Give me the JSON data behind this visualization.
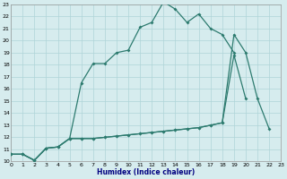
{
  "xlabel": "Humidex (Indice chaleur)",
  "background_color": "#d6ecee",
  "grid_color": "#afd4d8",
  "line_color": "#2d7b6f",
  "xlim": [
    0,
    23
  ],
  "ylim": [
    10,
    23
  ],
  "xticks": [
    0,
    1,
    2,
    3,
    4,
    5,
    6,
    7,
    8,
    9,
    10,
    11,
    12,
    13,
    14,
    15,
    16,
    17,
    18,
    19,
    20,
    21,
    22,
    23
  ],
  "yticks": [
    10,
    11,
    12,
    13,
    14,
    15,
    16,
    17,
    18,
    19,
    20,
    21,
    22,
    23
  ],
  "line1_x": [
    0,
    1,
    2,
    3,
    4,
    5,
    6,
    7,
    8,
    9,
    10,
    11,
    12,
    13,
    14,
    15,
    16,
    17,
    18,
    19
  ],
  "line1_y": [
    10.6,
    10.6,
    10.1,
    11.1,
    11.2,
    11.9,
    16.5,
    18.1,
    18.1,
    19.0,
    19.2,
    21.1,
    21.5,
    23.2,
    22.6,
    21.5,
    22.2,
    21.0,
    20.5,
    19.0
  ],
  "line2_x": [
    0,
    1,
    2,
    3,
    4,
    5,
    6,
    7,
    8,
    9,
    10,
    11,
    12,
    13,
    14,
    15,
    16,
    17,
    18,
    19,
    20
  ],
  "line2_y": [
    10.6,
    10.6,
    10.1,
    11.1,
    11.2,
    11.9,
    11.9,
    11.9,
    12.0,
    12.1,
    12.2,
    12.3,
    12.4,
    12.5,
    12.6,
    12.7,
    12.8,
    13.0,
    13.2,
    18.8,
    15.2
  ],
  "line3_x": [
    0,
    1,
    2,
    3,
    4,
    5,
    6,
    7,
    8,
    9,
    10,
    11,
    12,
    13,
    14,
    15,
    16,
    17,
    18,
    19,
    20,
    21,
    22
  ],
  "line3_y": [
    10.6,
    10.6,
    10.1,
    11.1,
    11.2,
    11.9,
    11.9,
    11.9,
    12.0,
    12.1,
    12.2,
    12.3,
    12.4,
    12.5,
    12.6,
    12.7,
    12.8,
    13.0,
    13.2,
    20.5,
    19.0,
    15.2,
    12.7
  ]
}
